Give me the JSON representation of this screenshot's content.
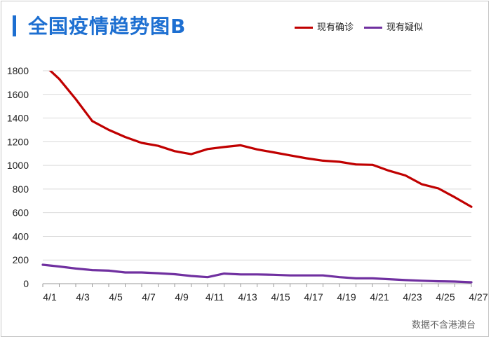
{
  "page": {
    "title": "全国疫情趋势图B",
    "source_note": "数据不含港澳台"
  },
  "chart_data": {
    "type": "line",
    "title": "全国疫情趋势图B",
    "xlabel": "",
    "ylabel": "",
    "ylim": [
      0,
      1800
    ],
    "yticks": [
      0,
      200,
      400,
      600,
      800,
      1000,
      1200,
      1400,
      1600,
      1800
    ],
    "grid": true,
    "legend_position": "top-right",
    "x": [
      "4/1",
      "4/2",
      "4/3",
      "4/4",
      "4/5",
      "4/6",
      "4/7",
      "4/8",
      "4/9",
      "4/10",
      "4/11",
      "4/12",
      "4/13",
      "4/14",
      "4/15",
      "4/16",
      "4/17",
      "4/18",
      "4/19",
      "4/20",
      "4/21",
      "4/22",
      "4/23",
      "4/24",
      "4/25",
      "4/26",
      "4/27"
    ],
    "xtick_labels": [
      "4/1",
      "4/3",
      "4/5",
      "4/7",
      "4/9",
      "4/11",
      "4/13",
      "4/15",
      "4/17",
      "4/19",
      "4/21",
      "4/23",
      "4/25",
      "4/27"
    ],
    "series": [
      {
        "name": "现有确诊",
        "color": "#c00000",
        "values": [
          1860,
          1730,
          1560,
          1375,
          1300,
          1240,
          1190,
          1165,
          1120,
          1095,
          1138,
          1155,
          1170,
          1135,
          1110,
          1085,
          1060,
          1040,
          1030,
          1008,
          1005,
          955,
          915,
          840,
          805,
          730,
          650
        ]
      },
      {
        "name": "现有疑似",
        "color": "#7030a0",
        "values": [
          160,
          145,
          128,
          115,
          110,
          95,
          95,
          88,
          80,
          65,
          55,
          85,
          78,
          78,
          75,
          70,
          70,
          70,
          55,
          45,
          45,
          38,
          30,
          25,
          20,
          18,
          12
        ]
      }
    ]
  }
}
